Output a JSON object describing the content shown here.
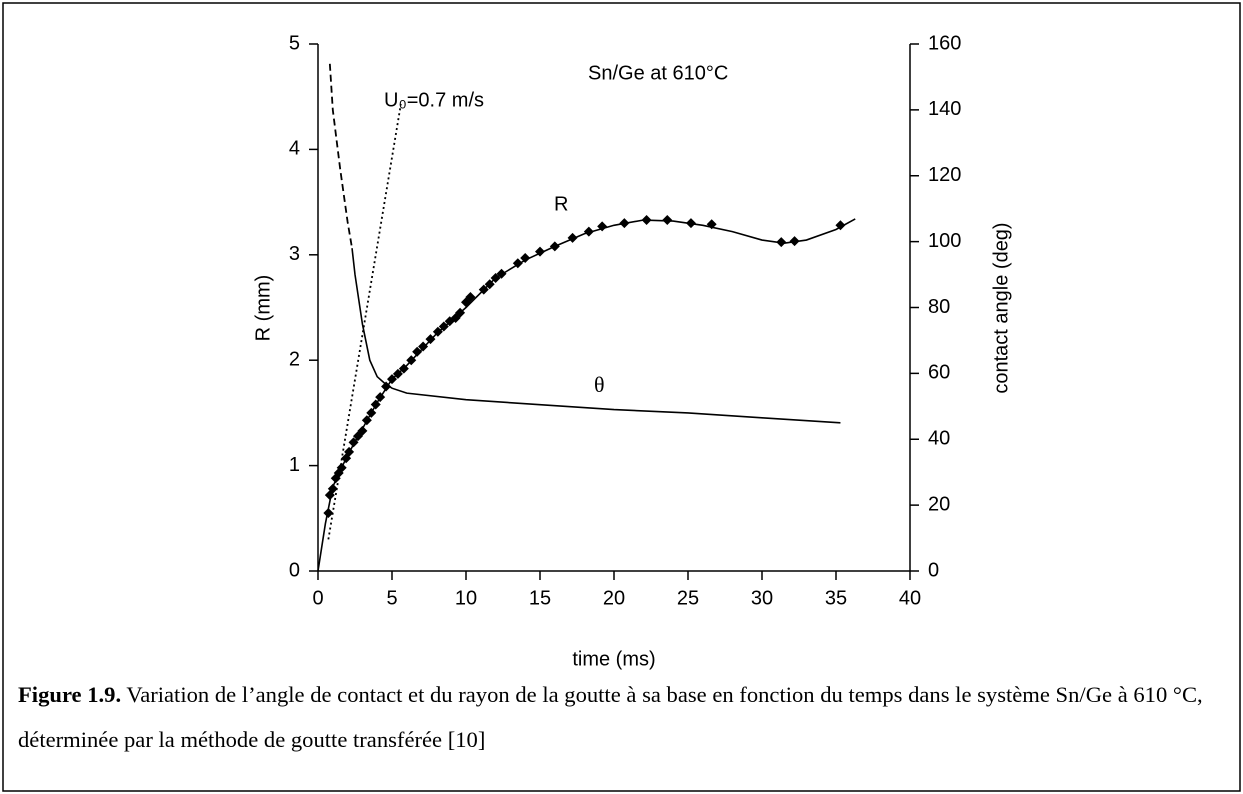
{
  "chart_data": {
    "type": "line",
    "xlabel": "time (ms)",
    "ylabel": "R (mm)",
    "y2label": "contact angle (deg)",
    "annotations": [
      "Sn/Ge at 610°C",
      "U₀=0.7 m/s",
      "R",
      "θ"
    ],
    "xlim": [
      0,
      40
    ],
    "xticks": [
      0,
      5,
      10,
      15,
      20,
      25,
      30,
      35,
      40
    ],
    "ylim": [
      0,
      5
    ],
    "yticks": [
      0,
      1,
      2,
      3,
      4,
      5
    ],
    "y2lim": [
      0,
      160
    ],
    "y2ticks": [
      0,
      20,
      40,
      60,
      80,
      100,
      120,
      140,
      160
    ],
    "series": [
      {
        "type": "scatter",
        "color": "#000000",
        "x": [
          0.7,
          0.8,
          1.0,
          1.2,
          1.4,
          1.6,
          1.9,
          2.1,
          2.4,
          2.7,
          3.0,
          3.3,
          3.6,
          3.9,
          4.2,
          4.6,
          5.0,
          5.4,
          5.8,
          6.3,
          6.7,
          7.1,
          7.6,
          8.1,
          8.5,
          8.9,
          9.3,
          9.6,
          10.0,
          10.3,
          11.2,
          11.6,
          12.0,
          12.4,
          13.5,
          14.0,
          15.0,
          16.0,
          17.2,
          18.3,
          19.2,
          20.7,
          22.2,
          23.6,
          25.2,
          26.6,
          31.3,
          32.2,
          35.3
        ],
        "values": [
          0.55,
          0.72,
          0.78,
          0.88,
          0.93,
          0.98,
          1.07,
          1.13,
          1.22,
          1.28,
          1.33,
          1.43,
          1.5,
          1.58,
          1.65,
          1.75,
          1.82,
          1.87,
          1.92,
          2.0,
          2.08,
          2.13,
          2.2,
          2.27,
          2.32,
          2.37,
          2.4,
          2.45,
          2.55,
          2.6,
          2.67,
          2.72,
          2.78,
          2.82,
          2.92,
          2.97,
          3.03,
          3.08,
          3.16,
          3.22,
          3.27,
          3.3,
          3.33,
          3.33,
          3.3,
          3.29,
          3.12,
          3.13,
          3.28
        ]
      },
      {
        "type": "line",
        "color": "#000000",
        "style": "solid",
        "x": [
          0,
          0.5,
          1,
          2,
          3,
          4,
          5,
          6,
          8,
          10,
          12,
          14,
          16,
          18,
          20,
          22,
          24,
          26,
          28,
          30,
          31.5,
          33,
          35,
          36.3
        ],
        "values": [
          0,
          0.45,
          0.8,
          1.1,
          1.35,
          1.6,
          1.82,
          1.95,
          2.25,
          2.5,
          2.78,
          2.95,
          3.08,
          3.2,
          3.28,
          3.33,
          3.32,
          3.28,
          3.22,
          3.14,
          3.11,
          3.14,
          3.24,
          3.34
        ]
      },
      {
        "type": "line",
        "color": "#000000",
        "style": "dashed",
        "axis": "y2",
        "x": [
          0.8,
          1.0,
          1.5,
          2.0,
          2.3
        ],
        "values": [
          154,
          140,
          122,
          106,
          98
        ]
      },
      {
        "type": "line",
        "color": "#000000",
        "style": "solid",
        "axis": "y2",
        "x": [
          2.3,
          2.5,
          3,
          3.5,
          4,
          4.5,
          5,
          6,
          10,
          15,
          20,
          25,
          30,
          35.3
        ],
        "values": [
          98,
          90,
          75,
          64,
          59,
          57,
          55.5,
          54,
          52,
          50.5,
          49,
          48,
          46.5,
          45
        ]
      },
      {
        "type": "line",
        "color": "#000000",
        "style": "dotted",
        "x": [
          0.7,
          5.6
        ],
        "values": [
          0.3,
          4.43
        ]
      }
    ]
  },
  "caption": {
    "label": "Figure 1.9.",
    "text": " Variation de l’angle de contact et du rayon de la goutte à sa base en fonction du temps dans le système Sn/Ge à 610 °C, déterminée par la méthode de goutte transférée [10]"
  }
}
